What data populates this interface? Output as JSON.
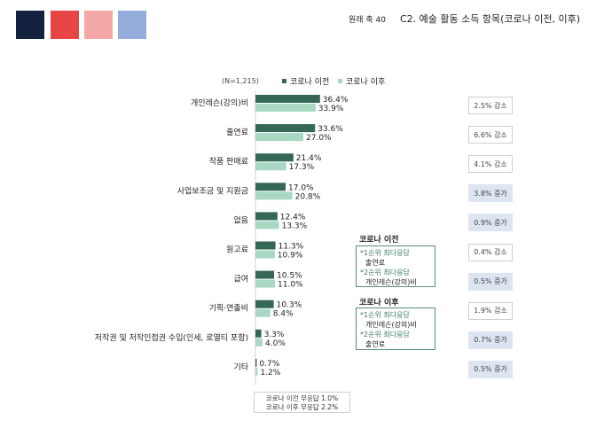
{
  "header": {
    "source_label": "원래 축 40",
    "title": "C2. 예술 활동 소득 항목(코로나 이전, 이후)"
  },
  "swatch_colors": [
    "#14213f",
    "#e84545",
    "#f4a7a7",
    "#94acdb"
  ],
  "colors": {
    "before": "#346757",
    "after": "#a8d8c4",
    "increase_bg": "#dde4f2"
  },
  "chart_data": {
    "type": "bar",
    "orientation": "horizontal",
    "sample_label": "(N=1,215)",
    "categories": [
      "개인레슨(강의)비",
      "출연료",
      "작품 판매료",
      "사업보조금 및 지원금",
      "없음",
      "원고료",
      "급여",
      "기획·연출비",
      "저작권 및 저작인접권 수입(인세, 로열티 포함)",
      "기타"
    ],
    "series": [
      {
        "name": "코로나 이전",
        "values": [
          36.4,
          33.6,
          21.4,
          17.0,
          12.4,
          11.3,
          10.5,
          10.3,
          3.3,
          0.7
        ],
        "labels": [
          "36.4%",
          "33.6%",
          "21.4%",
          "17.0%",
          "12.4%",
          "11.3%",
          "10.5%",
          "10.3%",
          "3.3%",
          "0.7%"
        ]
      },
      {
        "name": "코로나 이후",
        "values": [
          33.9,
          27.0,
          17.3,
          20.8,
          13.3,
          10.9,
          11.0,
          8.4,
          4.0,
          1.2
        ],
        "labels": [
          "33.9%",
          "27.0%",
          "17.3%",
          "20.8%",
          "13.3%",
          "10.9%",
          "11.0%",
          "8.4%",
          "4.0%",
          "1.2%"
        ]
      }
    ],
    "changes": [
      {
        "text": "2.5% 감소",
        "increase": false
      },
      {
        "text": "6.6% 감소",
        "increase": false
      },
      {
        "text": "4.1% 감소",
        "increase": false
      },
      {
        "text": "3.8% 증가",
        "increase": true
      },
      {
        "text": "0.9% 증가",
        "increase": true
      },
      {
        "text": "0.4% 감소",
        "increase": false
      },
      {
        "text": "0.5% 증가",
        "increase": true
      },
      {
        "text": "1.9% 감소",
        "increase": false
      },
      {
        "text": "0.7% 증가",
        "increase": true
      },
      {
        "text": "0.5% 증가",
        "increase": true
      }
    ],
    "xlim": [
      0,
      40
    ]
  },
  "annotations": {
    "before": {
      "title": "코로나 이전",
      "first_key": "*1순위 최다응답",
      "first_value": "출연료",
      "second_key": "*2순위 최다응답",
      "second_value": "개인레슨(강의)비"
    },
    "after": {
      "title": "코로나 이후",
      "first_key": "*1순위 최다응답",
      "first_value": "개인레슨(강의)비",
      "second_key": "*2순위 최다응답",
      "second_value": "출연료"
    }
  },
  "note": {
    "line1": "코로나 이전 무응답 1.0%",
    "line2": "코로나 이후 무응답 2.2%"
  }
}
